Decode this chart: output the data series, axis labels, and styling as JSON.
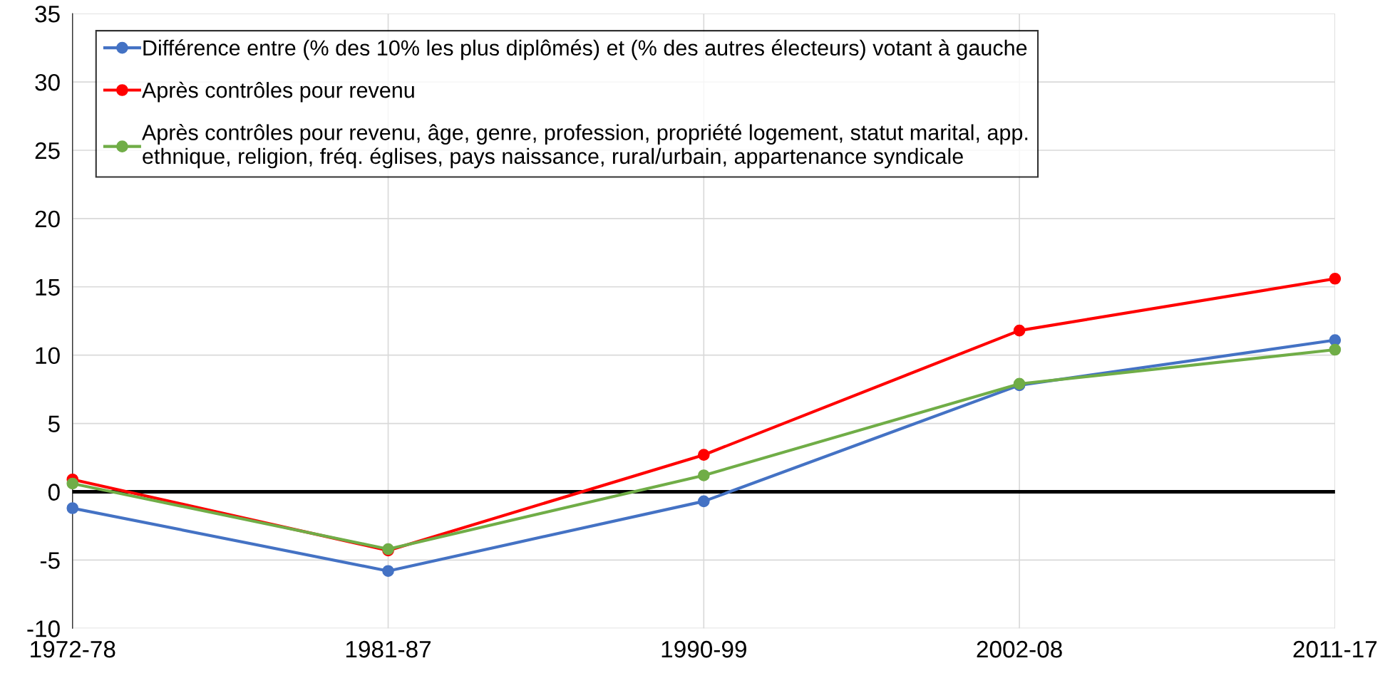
{
  "chart_data": {
    "type": "line",
    "categories": [
      "1972-78",
      "1981-87",
      "1990-99",
      "2002-08",
      "2011-17"
    ],
    "series": [
      {
        "name": "Différence entre (% des 10% les plus diplômés) et (% des autres électeurs) votant à gauche",
        "color": "#4472c4",
        "values": [
          -1.2,
          -5.8,
          -0.7,
          7.8,
          11.1
        ]
      },
      {
        "name": "Après contrôles pour revenu",
        "color": "#ff0000",
        "values": [
          0.9,
          -4.3,
          2.7,
          11.8,
          15.6
        ]
      },
      {
        "name": "Après contrôles pour revenu, âge, genre, profession, propriété logement, statut marital, app.\nethnique, religion, fréq. églises, pays naissance, rural/urbain, appartenance syndicale",
        "color": "#70ad47",
        "values": [
          0.6,
          -4.2,
          1.2,
          7.9,
          10.4
        ]
      }
    ],
    "ylim": [
      -10,
      35
    ],
    "yticks": [
      -10,
      -5,
      0,
      5,
      10,
      15,
      20,
      25,
      30,
      35
    ],
    "ref_lines": [
      {
        "axis": "y",
        "value": 0,
        "color": "#000000"
      }
    ],
    "grid": true,
    "legend": "top left",
    "marker": "circle",
    "line_style": "solid"
  }
}
